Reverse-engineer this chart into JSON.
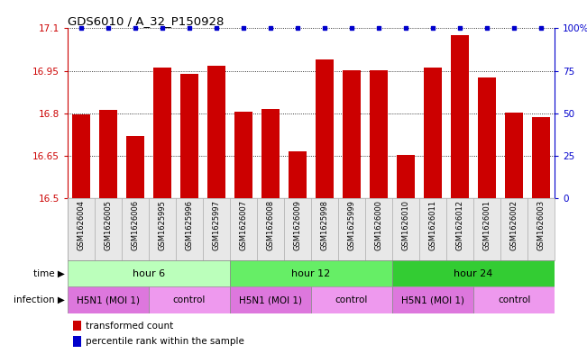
{
  "title": "GDS6010 / A_32_P150928",
  "samples": [
    "GSM1626004",
    "GSM1626005",
    "GSM1626006",
    "GSM1625995",
    "GSM1625996",
    "GSM1625997",
    "GSM1626007",
    "GSM1626008",
    "GSM1626009",
    "GSM1625998",
    "GSM1625999",
    "GSM1626000",
    "GSM1626010",
    "GSM1626011",
    "GSM1626012",
    "GSM1626001",
    "GSM1626002",
    "GSM1626003"
  ],
  "bar_values": [
    16.795,
    16.813,
    16.72,
    16.963,
    16.938,
    16.968,
    16.805,
    16.815,
    16.665,
    16.99,
    16.951,
    16.953,
    16.652,
    16.963,
    17.075,
    16.928,
    16.802,
    16.785
  ],
  "percentile_values": [
    100,
    100,
    100,
    100,
    100,
    100,
    100,
    100,
    100,
    100,
    100,
    100,
    100,
    100,
    100,
    100,
    100,
    100
  ],
  "bar_color": "#cc0000",
  "percentile_color": "#0000cc",
  "ylim_left": [
    16.5,
    17.1
  ],
  "ylim_right": [
    0,
    100
  ],
  "yticks_left": [
    16.5,
    16.65,
    16.8,
    16.95,
    17.1
  ],
  "ytick_labels_left": [
    "16.5",
    "16.65",
    "16.8",
    "16.95",
    "17.1"
  ],
  "yticks_right": [
    0,
    25,
    50,
    75,
    100
  ],
  "ytick_labels_right": [
    "0",
    "25",
    "50",
    "75",
    "100%"
  ],
  "time_groups": [
    {
      "label": "hour 6",
      "start": 0,
      "end": 6,
      "color": "#bbffbb"
    },
    {
      "label": "hour 12",
      "start": 6,
      "end": 12,
      "color": "#66ee66"
    },
    {
      "label": "hour 24",
      "start": 12,
      "end": 18,
      "color": "#33cc33"
    }
  ],
  "infection_groups": [
    {
      "label": "H5N1 (MOI 1)",
      "start": 0,
      "end": 3,
      "color": "#dd77dd"
    },
    {
      "label": "control",
      "start": 3,
      "end": 6,
      "color": "#ee99ee"
    },
    {
      "label": "H5N1 (MOI 1)",
      "start": 6,
      "end": 9,
      "color": "#dd77dd"
    },
    {
      "label": "control",
      "start": 9,
      "end": 12,
      "color": "#ee99ee"
    },
    {
      "label": "H5N1 (MOI 1)",
      "start": 12,
      "end": 15,
      "color": "#dd77dd"
    },
    {
      "label": "control",
      "start": 15,
      "end": 18,
      "color": "#ee99ee"
    }
  ],
  "background_color": "#ffffff",
  "legend_items": [
    {
      "label": "transformed count",
      "color": "#cc0000"
    },
    {
      "label": "percentile rank within the sample",
      "color": "#0000cc"
    }
  ]
}
